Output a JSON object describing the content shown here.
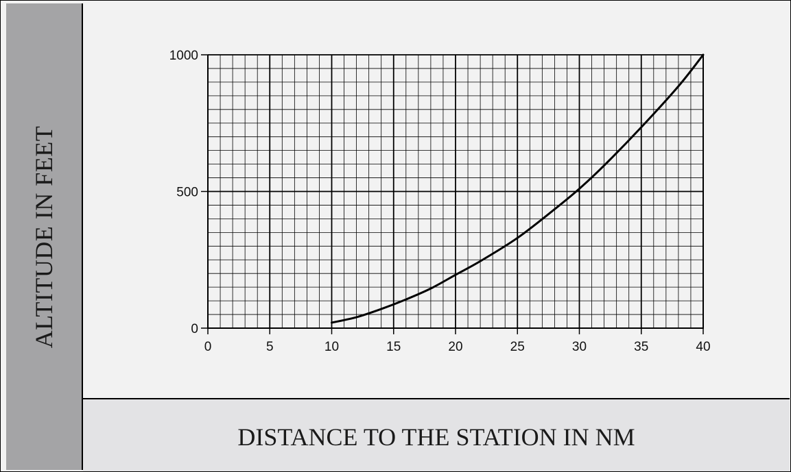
{
  "chart_data": {
    "type": "line",
    "title": "",
    "xlabel": "DISTANCE TO THE STATION IN NM",
    "ylabel": "ALTITUDE IN FEET",
    "xlim": [
      0,
      40
    ],
    "ylim": [
      0,
      1000
    ],
    "x_ticks": [
      0,
      5,
      10,
      15,
      20,
      25,
      30,
      35,
      40
    ],
    "x_tick_labels": [
      "0",
      "5",
      "10",
      "15",
      "20",
      "25",
      "30",
      "35",
      "40"
    ],
    "y_ticks": [
      0,
      500,
      1000
    ],
    "y_tick_labels": [
      "0",
      "500",
      "1000"
    ],
    "grid": true,
    "grid_minor_x_step": 1,
    "grid_minor_y_step": 50,
    "grid_major_x_step": 5,
    "grid_major_y_step": 500,
    "series": [
      {
        "x": [
          10,
          12,
          14,
          16,
          18,
          20,
          22,
          25,
          28,
          30,
          32,
          35,
          38,
          40
        ],
        "y": [
          20,
          40,
          70,
          105,
          145,
          195,
          245,
          330,
          435,
          510,
          595,
          735,
          885,
          1000
        ]
      }
    ]
  },
  "colors": {
    "frame_background": "#f2f2f2",
    "ylabel_panel": "#a4a4a6",
    "xlabel_panel": "#e3e3e5",
    "line": "#000000"
  }
}
